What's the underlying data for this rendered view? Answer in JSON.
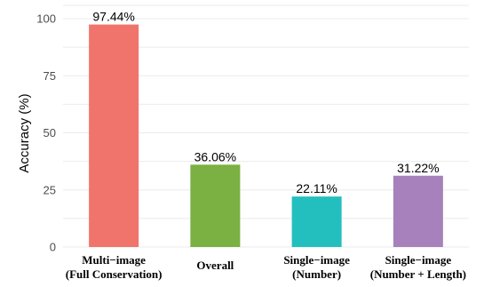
{
  "chart_data": {
    "type": "bar",
    "title": "",
    "xlabel": "",
    "ylabel": "Accuracy (%)",
    "ylim": [
      0,
      105
    ],
    "yticks": [
      0,
      25,
      50,
      75,
      100
    ],
    "grid": true,
    "legend": "none",
    "categories": [
      [
        "Multi−image",
        "(Full Conservation)"
      ],
      [
        "Overall"
      ],
      [
        "Single−image",
        "(Number)"
      ],
      [
        "Single−image",
        "(Number + Length)"
      ]
    ],
    "values": [
      97.44,
      36.06,
      22.11,
      31.22
    ],
    "value_labels": [
      "97.44%",
      "36.06%",
      "22.11%",
      "31.22%"
    ],
    "colors": [
      "#F1746C",
      "#7BB042",
      "#23BFBF",
      "#A781BC"
    ]
  }
}
